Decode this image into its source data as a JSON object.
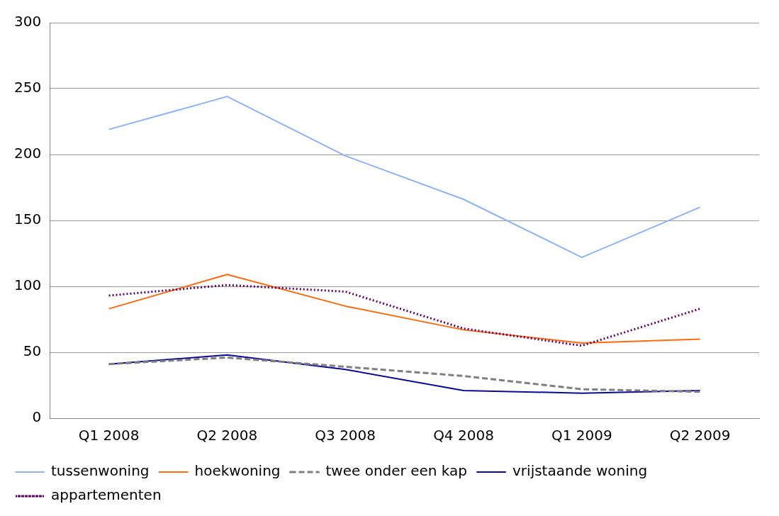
{
  "chart_data": {
    "type": "line",
    "categories": [
      "Q1 2008",
      "Q2 2008",
      "Q3 2008",
      "Q4 2008",
      "Q1 2009",
      "Q2 2009"
    ],
    "series": [
      {
        "name": "tussenwoning",
        "color": "#8db3f5",
        "values": [
          219,
          244,
          199,
          166,
          122,
          160
        ],
        "line_style": "solid"
      },
      {
        "name": "hoekwoning",
        "color": "#ff6a0d",
        "values": [
          83,
          109,
          85,
          67,
          57,
          60
        ],
        "line_style": "solid"
      },
      {
        "name": "twee onder een kap",
        "color": "#7f7f7f",
        "values": [
          41,
          46,
          39,
          32,
          22,
          20
        ],
        "line_style": "dashed"
      },
      {
        "name": "vrijstaande woning",
        "color": "#0a0a96",
        "values": [
          41,
          48,
          37,
          21,
          19,
          21
        ],
        "line_style": "solid"
      },
      {
        "name": "appartementen",
        "color": "#660066",
        "values": [
          93,
          101,
          96,
          68,
          55,
          83
        ],
        "line_style": "dotted"
      }
    ],
    "ylim": [
      0,
      300
    ],
    "yticks": [
      0,
      50,
      100,
      150,
      200,
      250,
      300
    ],
    "grid": "y",
    "legend": "bottom",
    "marker": "none"
  }
}
